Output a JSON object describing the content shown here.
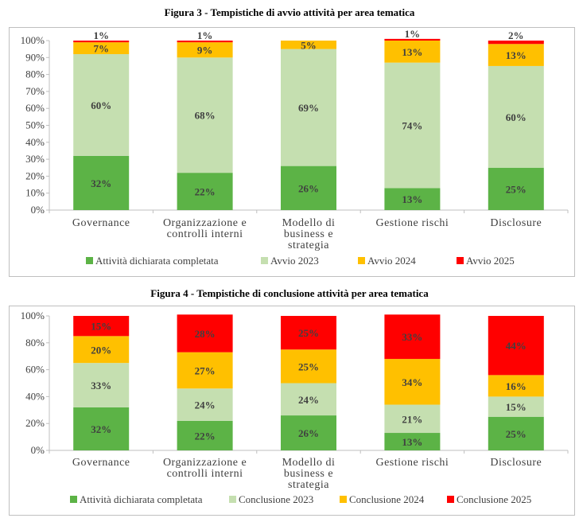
{
  "colors": {
    "completed": "#5cb346",
    "y2023": "#c5dfb0",
    "y2024": "#ffc000",
    "y2025": "#ff0000",
    "label": "#404040"
  },
  "chart_data": [
    {
      "type": "bar",
      "stacked": true,
      "title": "Figura 3 - Tempistiche di avvio attività per area tematica",
      "categories": [
        [
          "Governance"
        ],
        [
          "Organizzazione e",
          "controlli interni"
        ],
        [
          "Modello di",
          "business e",
          "strategia"
        ],
        [
          "Gestione rischi"
        ],
        [
          "Disclosure"
        ]
      ],
      "series": [
        {
          "name": "Attività dichiarata completata",
          "color_key": "completed",
          "values": [
            32,
            22,
            26,
            13,
            25
          ]
        },
        {
          "name": "Avvio 2023",
          "color_key": "y2023",
          "values": [
            60,
            68,
            69,
            74,
            60
          ]
        },
        {
          "name": "Avvio 2024",
          "color_key": "y2024",
          "values": [
            7,
            9,
            5,
            13,
            13
          ]
        },
        {
          "name": "Avvio 2025",
          "color_key": "y2025",
          "values": [
            1,
            1,
            0,
            1,
            2
          ]
        }
      ],
      "ylim": [
        0,
        100
      ],
      "yticks": [
        "0%",
        "10%",
        "20%",
        "30%",
        "40%",
        "50%",
        "60%",
        "70%",
        "80%",
        "90%",
        "100%"
      ],
      "grid": false,
      "legend": "bottom"
    },
    {
      "type": "bar",
      "stacked": true,
      "title": "Figura 4 - Tempistiche di conclusione attività per area tematica",
      "categories": [
        [
          "Governance"
        ],
        [
          "Organizzazione e",
          "controlli interni"
        ],
        [
          "Modello di",
          "business e",
          "strategia"
        ],
        [
          "Gestione rischi"
        ],
        [
          "Disclosure"
        ]
      ],
      "series": [
        {
          "name": "Attività dichiarata completata",
          "color_key": "completed",
          "values": [
            32,
            22,
            26,
            13,
            25
          ]
        },
        {
          "name": "Conclusione 2023",
          "color_key": "y2023",
          "values": [
            33,
            24,
            24,
            21,
            15
          ]
        },
        {
          "name": "Conclusione 2024",
          "color_key": "y2024",
          "values": [
            20,
            27,
            25,
            34,
            16
          ]
        },
        {
          "name": "Conclusione 2025",
          "color_key": "y2025",
          "values": [
            15,
            28,
            25,
            33,
            44
          ]
        }
      ],
      "ylim": [
        0,
        100
      ],
      "yticks": [
        "0%",
        "20%",
        "40%",
        "60%",
        "80%",
        "100%"
      ],
      "grid": false,
      "legend": "bottom"
    }
  ]
}
